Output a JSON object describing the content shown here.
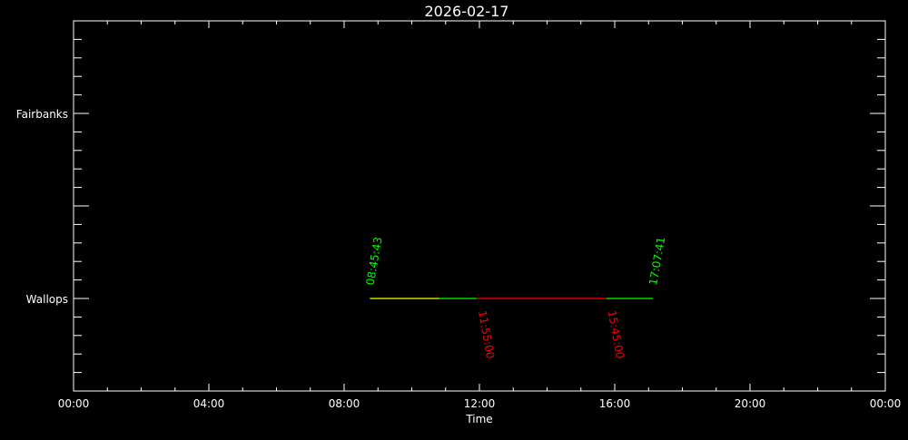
{
  "chart_data": {
    "type": "timeline",
    "title": "2026-02-17",
    "xlabel": "Time",
    "ylabel": "",
    "xlim": [
      "00:00",
      "24:00"
    ],
    "x_tick_labels": [
      "00:00",
      "04:00",
      "08:00",
      "12:00",
      "16:00",
      "20:00",
      "00:00"
    ],
    "x_major_step_hours": 4,
    "x_minor_step_hours": 1,
    "ylim": [
      -0.5,
      1.5
    ],
    "categories": [
      "Wallops",
      "Fairbanks"
    ],
    "category_values": [
      0,
      1
    ],
    "grid": false,
    "background": "#000000",
    "axis_color": "#ffffff",
    "segments": [
      {
        "station": "Wallops",
        "start": "08:45:43",
        "end": "10:49:00",
        "color": "#ffff00"
      },
      {
        "station": "Wallops",
        "start": "10:49:00",
        "end": "11:55:00",
        "color": "#00ff00"
      },
      {
        "station": "Wallops",
        "start": "11:55:00",
        "end": "15:45:00",
        "color": "#ff0000"
      },
      {
        "station": "Wallops",
        "start": "15:45:00",
        "end": "17:07:41",
        "color": "#00ff00"
      }
    ],
    "annotations": [
      {
        "text": "08:45:43",
        "time": "08:45:43",
        "station": "Wallops",
        "side": "above",
        "color": "#00ff00"
      },
      {
        "text": "17:07:41",
        "time": "17:07:41",
        "station": "Wallops",
        "side": "above",
        "color": "#00ff00"
      },
      {
        "text": "11:55:00",
        "time": "11:55:00",
        "station": "Wallops",
        "side": "below",
        "color": "#ff0000"
      },
      {
        "text": "15:45:00",
        "time": "15:45:00",
        "station": "Wallops",
        "side": "below",
        "color": "#ff0000"
      }
    ]
  }
}
